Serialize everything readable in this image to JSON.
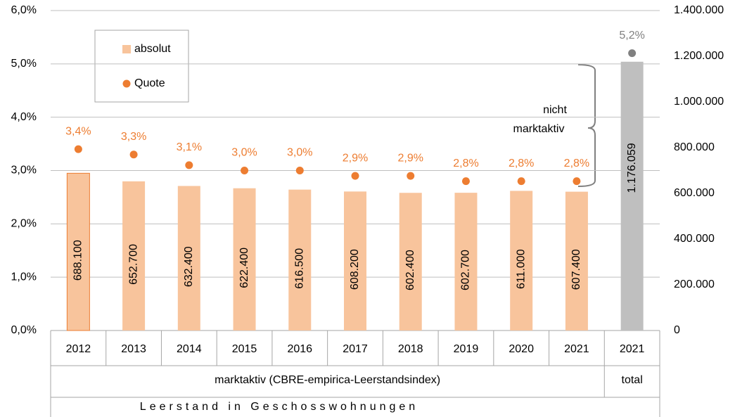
{
  "chart_data": {
    "type": "bar_dot",
    "xlabel": "Leerstand in Geschosswohnungen",
    "categories": [
      "2012",
      "2013",
      "2014",
      "2015",
      "2016",
      "2017",
      "2018",
      "2019",
      "2020",
      "2021",
      "2021"
    ],
    "groups": [
      {
        "label": "marktaktiv (CBRE-empirica-Leerstandsindex)",
        "count": 10
      },
      {
        "label": "total",
        "count": 1
      }
    ],
    "series": [
      {
        "name": "absolut",
        "type": "bar",
        "axis": "y2",
        "color": "#f8c49c",
        "colors": [
          "#f8c49c",
          "#f8c49c",
          "#f8c49c",
          "#f8c49c",
          "#f8c49c",
          "#f8c49c",
          "#f8c49c",
          "#f8c49c",
          "#f8c49c",
          "#f8c49c",
          "#bfbfbf"
        ],
        "values": [
          688100,
          652700,
          632400,
          622400,
          616500,
          608200,
          602400,
          602700,
          611000,
          607400,
          1176059
        ],
        "value_labels": [
          "688.100",
          "652.700",
          "632.400",
          "622.400",
          "616.500",
          "608.200",
          "602.400",
          "602.700",
          "611.000",
          "607.400",
          "1.176.059"
        ]
      },
      {
        "name": "Quote",
        "type": "dot",
        "axis": "y",
        "color": "#ed7d31",
        "colors": [
          "#ed7d31",
          "#ed7d31",
          "#ed7d31",
          "#ed7d31",
          "#ed7d31",
          "#ed7d31",
          "#ed7d31",
          "#ed7d31",
          "#ed7d31",
          "#ed7d31",
          "#808080"
        ],
        "values": [
          3.4,
          3.3,
          3.1,
          3.0,
          3.0,
          2.9,
          2.9,
          2.8,
          2.8,
          2.8,
          5.2
        ],
        "value_labels": [
          "3,4%",
          "3,3%",
          "3,1%",
          "3,0%",
          "3,0%",
          "2,9%",
          "2,9%",
          "2,8%",
          "2,8%",
          "2,8%",
          "5,2%"
        ]
      }
    ],
    "ylim": [
      0,
      6
    ],
    "yticks": [
      {
        "value": 0,
        "label": "0,0%"
      },
      {
        "value": 1,
        "label": "1,0%"
      },
      {
        "value": 2,
        "label": "2,0%"
      },
      {
        "value": 3,
        "label": "3,0%"
      },
      {
        "value": 4,
        "label": "4,0%"
      },
      {
        "value": 5,
        "label": "5,0%"
      },
      {
        "value": 6,
        "label": "6,0%"
      }
    ],
    "y2lim": [
      0,
      1400000
    ],
    "y2ticks": [
      0,
      {
        "value": 200000,
        "label": "200.000"
      },
      {
        "value": 400000,
        "label": "400.000"
      },
      {
        "value": 600000,
        "label": "600.000"
      },
      {
        "value": 800000,
        "label": "800.000"
      },
      {
        "value": 1000000,
        "label": "1.000.000"
      },
      {
        "value": 1200000,
        "label": "1.200.000"
      },
      {
        "value": 1400000,
        "label": "1.400.000"
      }
    ],
    "grid": true,
    "legend": "upper left",
    "annotation_lines": [
      "nicht",
      "marktaktiv"
    ]
  }
}
